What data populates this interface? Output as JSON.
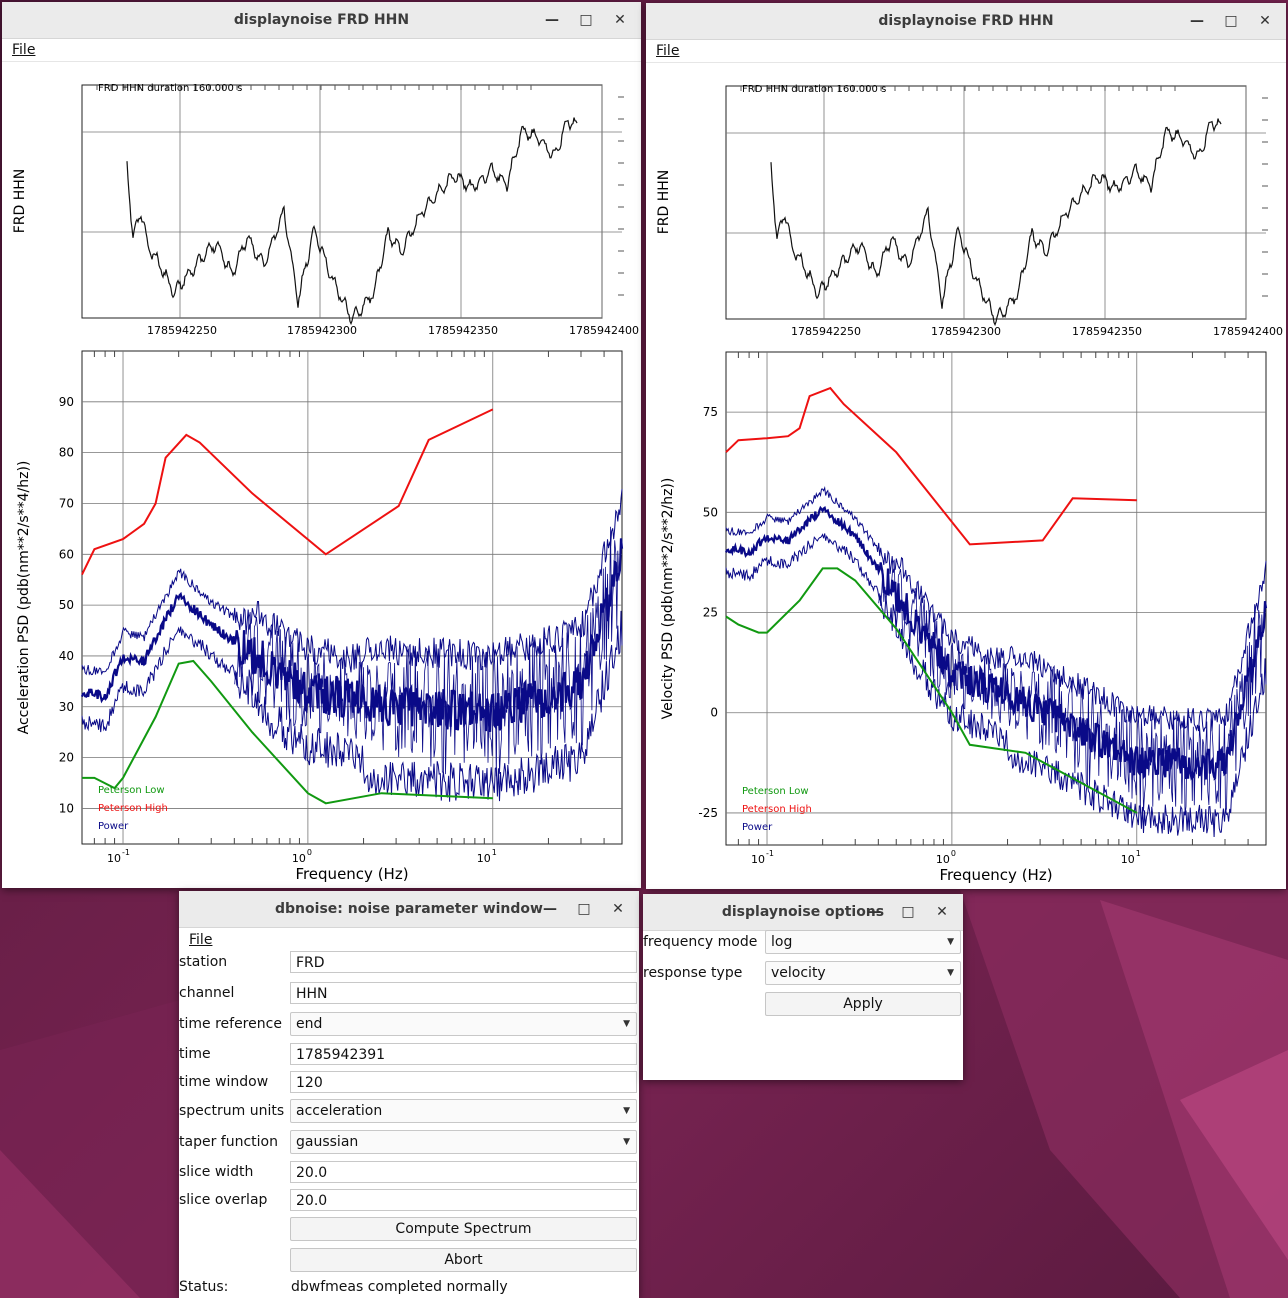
{
  "win_noise_left": {
    "title": "displaynoise FRD HHN",
    "menu_file_first": "F",
    "menu_file_rest": "ile",
    "trace": {
      "ylabel": "FRD HHN",
      "header": "FRD HHN   duration 160.000 s",
      "xticks": [
        "1785942250",
        "1785942300",
        "1785942350",
        "1785942400"
      ]
    },
    "psd": {
      "ylabel": "Acceleration PSD (pdb(nm**2/s**4/hz))",
      "xlabel": "Frequency (Hz)",
      "yticks": [
        "10",
        "20",
        "30",
        "40",
        "50",
        "60",
        "70",
        "80",
        "90"
      ],
      "legend": [
        "Peterson Low",
        "Peterson High",
        "Power"
      ]
    }
  },
  "win_noise_right": {
    "title": "displaynoise FRD HHN",
    "menu_file_first": "F",
    "menu_file_rest": "ile",
    "trace": {
      "ylabel": "FRD HHN",
      "header": "FRD HHN   duration 160.000 s",
      "xticks": [
        "1785942250",
        "1785942300",
        "1785942350",
        "1785942400"
      ]
    },
    "psd": {
      "ylabel": "Velocity PSD (pdb(nm**2/s**2/hz))",
      "xlabel": "Frequency (Hz)",
      "yticks": [
        "-25",
        "0",
        "25",
        "50",
        "75"
      ],
      "legend": [
        "Peterson Low",
        "Peterson High",
        "Power"
      ]
    }
  },
  "freq_ticks": [
    "10",
    "-1",
    "10",
    "0",
    "10",
    "1"
  ],
  "colors": {
    "peterson_low": "#119911",
    "peterson_high": "#ee1111",
    "power": "#0a0a88",
    "trace": "#111111"
  },
  "chart_data": [
    {
      "type": "line",
      "title": "",
      "xlabel": "",
      "ylabel": "FRD HHN",
      "x_ticks": [
        1785942250,
        1785942300,
        1785942350,
        1785942400
      ],
      "series": [
        {
          "name": "",
          "x_range": [
            1785942231,
            1785942391
          ],
          "shape": "seismic trace"
        }
      ]
    },
    {
      "type": "line",
      "xlabel": "Frequency (Hz)",
      "ylabel": "Acceleration PSD (pdb(nm**2/s**4/hz))",
      "xscale": "log",
      "xlim": [
        0.06,
        50
      ],
      "ylim": [
        3,
        100
      ],
      "series": [
        {
          "name": "Peterson High",
          "x": [
            0.06,
            0.07,
            0.1,
            0.13,
            0.15,
            0.17,
            0.22,
            0.26,
            0.5,
            1.25,
            3.1,
            4.5,
            10
          ],
          "y": [
            56,
            61,
            63,
            66,
            70,
            79,
            83.5,
            82,
            72,
            60,
            69.5,
            82.5,
            88.5
          ]
        },
        {
          "name": "Peterson Low",
          "x": [
            0.06,
            0.07,
            0.09,
            0.1,
            0.15,
            0.2,
            0.24,
            0.3,
            0.5,
            1.0,
            1.25,
            2.5,
            10
          ],
          "y": [
            16,
            16,
            14,
            16,
            28,
            38.5,
            39,
            35,
            25,
            13,
            11,
            13,
            12
          ]
        },
        {
          "name": "Power",
          "x": [
            0.06,
            0.08,
            0.1,
            0.13,
            0.2,
            0.3,
            1,
            3,
            10,
            30,
            50
          ],
          "y": [
            33,
            32,
            40,
            39,
            52,
            46,
            33,
            30,
            29,
            34,
            60
          ]
        }
      ],
      "legend": "bottom-left"
    },
    {
      "type": "line",
      "xlabel": "Frequency (Hz)",
      "ylabel": "Velocity PSD (pdb(nm**2/s**2/hz))",
      "xscale": "log",
      "xlim": [
        0.06,
        50
      ],
      "ylim": [
        -33,
        90
      ],
      "series": [
        {
          "name": "Peterson High",
          "x": [
            0.06,
            0.07,
            0.1,
            0.13,
            0.15,
            0.17,
            0.22,
            0.26,
            0.5,
            1.25,
            3.1,
            4.5,
            10
          ],
          "y": [
            65,
            68,
            68.5,
            69,
            71,
            79,
            81,
            77,
            65,
            42,
            43,
            53.5,
            53
          ]
        },
        {
          "name": "Peterson Low",
          "x": [
            0.06,
            0.07,
            0.09,
            0.1,
            0.15,
            0.2,
            0.24,
            0.3,
            0.5,
            1.0,
            1.25,
            2.5,
            10
          ],
          "y": [
            24,
            22,
            20,
            20,
            28,
            36,
            36,
            33,
            21,
            0,
            -8,
            -10,
            -25
          ]
        },
        {
          "name": "Power",
          "x": [
            0.06,
            0.08,
            0.1,
            0.13,
            0.2,
            0.3,
            1,
            3,
            10,
            30,
            50
          ],
          "y": [
            41,
            40,
            44,
            43,
            51,
            44,
            10,
            1,
            -12,
            -13,
            25
          ]
        }
      ],
      "legend": "bottom-left"
    }
  ],
  "param_window": {
    "title": "dbnoise: noise parameter window",
    "menu_file_first": "F",
    "menu_file_rest": "ile",
    "station_label": "station",
    "station_value": "FRD",
    "channel_label": "channel",
    "channel_value": "HHN",
    "timeref_label": "time reference",
    "timeref_value": "end",
    "time_label": "time",
    "time_value": "1785942391",
    "timewindow_label": "time window",
    "timewindow_value": "120",
    "units_label": "spectrum units",
    "units_value": "acceleration",
    "taper_label": "taper function",
    "taper_value": "gaussian",
    "slicewidth_label": "slice width",
    "slicewidth_value": "20.0",
    "sliceoverlap_label": "slice overlap",
    "sliceoverlap_value": "20.0",
    "compute_label": "Compute Spectrum",
    "abort_label": "Abort",
    "status_label": "Status:",
    "status_value": "dbwfmeas completed normally"
  },
  "options_window": {
    "title": "displaynoise options",
    "freqmode_label": "frequency mode",
    "freqmode_value": "log",
    "resptype_label": "response type",
    "resptype_value": "velocity",
    "apply_label": "Apply"
  },
  "icons": {
    "minimize": "minimize-icon",
    "maximize": "maximize-icon",
    "close": "close-icon",
    "dropdown": "dropdown-arrow-icon"
  }
}
